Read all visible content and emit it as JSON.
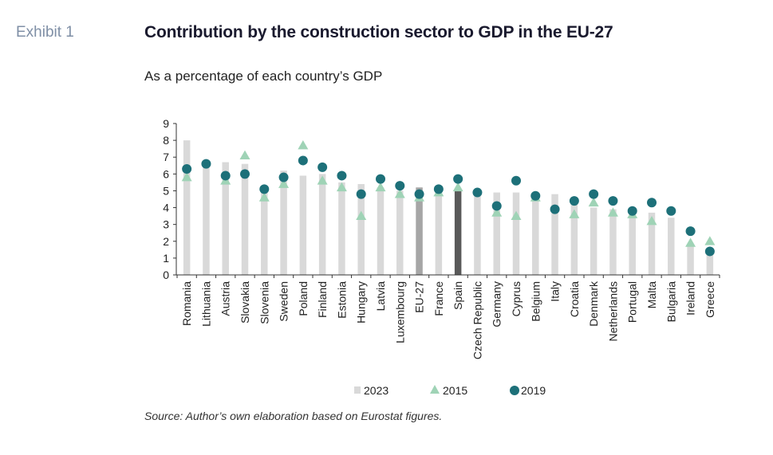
{
  "exhibit_label": "Exhibit 1",
  "title": "Contribution by the construction sector to GDP in the EU-27",
  "subtitle": "As a percentage of each country’s GDP",
  "source": "Source: Author’s own elaboration based on Eurostat figures.",
  "colors": {
    "bar_2023": "#d9d9d9",
    "bar_eu27": "#a6a6a6",
    "bar_spain": "#595959",
    "marker_2015": "#9fd3b6",
    "marker_2019": "#1d7079",
    "axis": "#333333"
  },
  "chart_data": {
    "type": "bar",
    "ylim": [
      0,
      9
    ],
    "yticks": [
      "0",
      "1",
      "2",
      "3",
      "4",
      "5",
      "6",
      "7",
      "8",
      "9"
    ],
    "grid": false,
    "legend_position": "bottom",
    "categories": [
      "Romania",
      "Lithuania",
      "Austria",
      "Slovakia",
      "Slovenia",
      "Sweden",
      "Poland",
      "Finland",
      "Estonia",
      "Hungary",
      "Latvia",
      "Luxembourg",
      "EU-27",
      "France",
      "Spain",
      "Czech Republic",
      "Germany",
      "Cyprus",
      "Belgium",
      "Italy",
      "Croatia",
      "Denmark",
      "Netherlands",
      "Portugal",
      "Malta",
      "Bulgaria",
      "Ireland",
      "Greece"
    ],
    "series": [
      {
        "name": "2023",
        "kind": "bar",
        "values": [
          8.0,
          6.7,
          6.7,
          6.6,
          5.3,
          6.2,
          5.9,
          6.0,
          5.5,
          5.4,
          5.2,
          5.0,
          5.2,
          5.0,
          5.0,
          5.0,
          4.9,
          4.9,
          4.6,
          4.8,
          4.2,
          4.0,
          3.9,
          3.4,
          3.7,
          3.4,
          1.8,
          1.5
        ]
      },
      {
        "name": "2015",
        "kind": "triangle",
        "values": [
          5.8,
          null,
          5.6,
          7.1,
          4.6,
          5.4,
          7.7,
          5.6,
          5.2,
          3.5,
          5.2,
          4.8,
          4.6,
          4.9,
          5.2,
          null,
          3.7,
          3.5,
          4.6,
          null,
          3.6,
          4.3,
          3.7,
          3.6,
          3.2,
          null,
          1.9,
          2.0
        ]
      },
      {
        "name": "2019",
        "kind": "circle",
        "values": [
          6.3,
          6.6,
          5.9,
          6.0,
          5.1,
          5.8,
          6.8,
          6.4,
          5.9,
          4.8,
          5.7,
          5.3,
          4.8,
          5.1,
          5.7,
          4.9,
          4.1,
          5.6,
          4.7,
          3.9,
          4.4,
          4.8,
          4.4,
          3.8,
          4.3,
          3.8,
          2.6,
          1.4
        ]
      }
    ]
  }
}
